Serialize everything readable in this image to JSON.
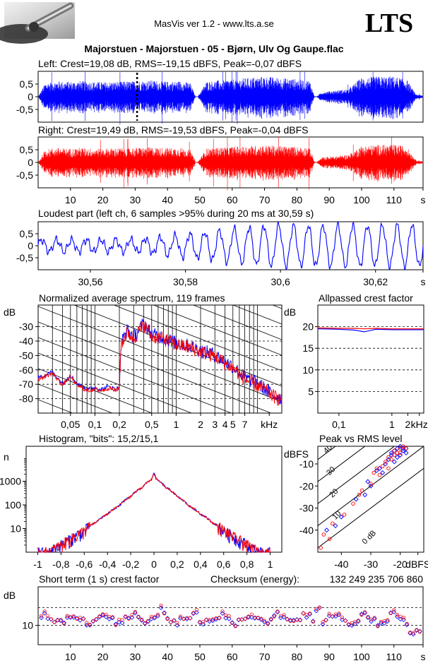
{
  "header": {
    "app_version": "MasVis ver 1.2 - www.lts.a.se",
    "logo_text": "LTS",
    "track_title": "Majorstuen - Majorstuen - 05 - Bjørn, Ulv Og Gaupe.flac"
  },
  "colors": {
    "left": "#0000ff",
    "right": "#ff0000",
    "axis": "#000000"
  },
  "chart_data": [
    {
      "id": "left",
      "type": "area",
      "title": "Left: Crest=19,08 dB, RMS=-19,15 dBFS, Peak=-0,07 dBFS",
      "ylim": [
        -1,
        1
      ],
      "yticks": [
        "0,5",
        "0",
        "-0,5"
      ],
      "yticks_val": [
        0.5,
        0,
        -0.5
      ],
      "xlim": [
        0,
        119
      ],
      "marker_time": 30.59,
      "silences": [
        [
          48.5,
          49.5
        ],
        [
          85.5,
          86.5
        ]
      ],
      "envelope": {
        "time": [
          0,
          2,
          4,
          6,
          8,
          10,
          13,
          16,
          20,
          25,
          30,
          35,
          40,
          44,
          47,
          48.5,
          49.5,
          52,
          56,
          60,
          65,
          70,
          75,
          80,
          84,
          85.5,
          86.5,
          88,
          92,
          96,
          100,
          105,
          110,
          114,
          117,
          119
        ],
        "amp": [
          0.05,
          0.55,
          0.6,
          0.62,
          0.6,
          0.6,
          0.62,
          0.6,
          0.58,
          0.6,
          0.62,
          0.65,
          0.6,
          0.62,
          0.55,
          0.05,
          0.05,
          0.6,
          0.65,
          0.7,
          0.75,
          0.8,
          0.75,
          0.7,
          0.65,
          0.05,
          0.05,
          0.2,
          0.25,
          0.3,
          0.75,
          0.8,
          0.8,
          0.7,
          0.1,
          0.05
        ]
      }
    },
    {
      "id": "right",
      "type": "area",
      "title": "Right: Crest=19,49 dB, RMS=-19,53 dBFS, Peak=-0,04 dBFS",
      "ylim": [
        -1,
        1
      ],
      "yticks": [
        "0,5",
        "0",
        "-0,5"
      ],
      "yticks_val": [
        0.5,
        0,
        -0.5
      ],
      "xlim": [
        0,
        119
      ],
      "xticks": [
        "10",
        "20",
        "30",
        "40",
        "50",
        "60",
        "70",
        "80",
        "90",
        "100",
        "110",
        "s"
      ],
      "xticks_val": [
        10,
        20,
        30,
        40,
        50,
        60,
        70,
        80,
        90,
        100,
        110,
        119
      ],
      "silences": [
        [
          48.5,
          49.5
        ],
        [
          85.5,
          86.5
        ]
      ],
      "envelope": {
        "time": [
          0,
          2,
          4,
          6,
          8,
          10,
          13,
          16,
          20,
          25,
          30,
          35,
          40,
          44,
          47,
          48.5,
          49.5,
          52,
          56,
          60,
          65,
          70,
          75,
          80,
          84,
          85.5,
          86.5,
          88,
          92,
          96,
          100,
          105,
          110,
          114,
          117,
          119
        ],
        "amp": [
          0.05,
          0.5,
          0.55,
          0.58,
          0.55,
          0.55,
          0.58,
          0.55,
          0.55,
          0.57,
          0.58,
          0.6,
          0.57,
          0.58,
          0.5,
          0.05,
          0.05,
          0.55,
          0.6,
          0.62,
          0.65,
          0.68,
          0.65,
          0.62,
          0.6,
          0.05,
          0.05,
          0.2,
          0.25,
          0.3,
          0.65,
          0.7,
          0.7,
          0.65,
          0.1,
          0.05
        ]
      }
    },
    {
      "id": "loudest",
      "type": "line",
      "title": "Loudest part (left  ch, 6 samples >95% during 20 ms at 30,59 s)",
      "ylim": [
        -1,
        1
      ],
      "yticks": [
        "0,5",
        "0",
        "-0,5"
      ],
      "yticks_val": [
        0.5,
        0,
        -0.5
      ],
      "xlim": [
        30.549,
        30.63
      ],
      "xticks": [
        "30,56",
        "30,58",
        "30,6",
        "30,62",
        "s"
      ],
      "xticks_val": [
        30.56,
        30.58,
        30.6,
        30.62,
        30.63
      ]
    },
    {
      "id": "spectrum",
      "type": "line",
      "title": "Normalized average spectrum, 119 frames",
      "ylabel": "dB",
      "xlabel": "kHz",
      "ylim": [
        -90,
        -15
      ],
      "yticks": [
        "-30",
        "-40",
        "-50",
        "-60",
        "-70",
        "-80"
      ],
      "yticks_val": [
        -30,
        -40,
        -50,
        -60,
        -70,
        -80
      ],
      "xlim": [
        0.02,
        20
      ],
      "xticks": [
        "0,05",
        "0,1",
        "0,2",
        "0,5",
        "1",
        "2",
        "3",
        "4",
        "5",
        "7",
        "kHz"
      ],
      "xticks_val": [
        0.05,
        0.1,
        0.2,
        0.5,
        1,
        2,
        3,
        4,
        5,
        7,
        14
      ],
      "series": [
        {
          "freq": [
            0.02,
            0.03,
            0.04,
            0.05,
            0.06,
            0.08,
            0.1,
            0.12,
            0.15,
            0.18,
            0.2,
            0.21,
            0.25,
            0.3,
            0.4,
            0.5,
            0.7,
            1,
            1.5,
            2,
            3,
            4,
            5,
            7,
            10,
            15,
            20
          ],
          "level": [
            -66,
            -62,
            -70,
            -64,
            -70,
            -74,
            -73,
            -74,
            -72,
            -74,
            -72,
            -42,
            -33,
            -38,
            -28,
            -36,
            -38,
            -42,
            -44,
            -47,
            -50,
            -55,
            -58,
            -66,
            -70,
            -77,
            -81
          ]
        }
      ]
    },
    {
      "id": "allpass",
      "type": "line",
      "title": "Allpassed crest factor",
      "ylabel": "dB",
      "xlabel": "kHz",
      "ylim": [
        0,
        25
      ],
      "yticks": [
        "20",
        "15",
        "10",
        "5"
      ],
      "yticks_val": [
        20,
        15,
        10,
        5
      ],
      "xlim": [
        0.04,
        4
      ],
      "xticks": [
        "0,1",
        "1",
        "2",
        "kHz"
      ],
      "xticks_val": [
        0.1,
        1,
        2,
        3.3
      ],
      "series": [
        {
          "name": "",
          "freq": [
            0.04,
            0.1,
            0.2,
            0.3,
            0.5,
            1,
            2,
            4
          ],
          "crest": [
            19.5,
            19.4,
            19.2,
            18.8,
            19.4,
            19.3,
            19.3,
            19.3
          ]
        },
        {
          "name": "",
          "freq": [
            0.04,
            0.1,
            0.2,
            0.3,
            0.5,
            1,
            2,
            4
          ],
          "crest": [
            19.7,
            19.6,
            19.6,
            19.5,
            19.6,
            19.5,
            19.5,
            19.5
          ]
        }
      ]
    },
    {
      "id": "histogram",
      "type": "line",
      "title": "Histogram, \"bits\": 15,2/15,1",
      "ylabel": "n",
      "ylim": [
        1,
        30000
      ],
      "yticks": [
        "1000",
        "100",
        "10"
      ],
      "yticks_val": [
        1000,
        100,
        10
      ],
      "xlim": [
        -1.1,
        1.1
      ],
      "xticks": [
        "-1",
        "-0,8",
        "-0,6",
        "-0,4",
        "-0,2",
        "0",
        "0,2",
        "0,4",
        "0,6",
        "0,8",
        "1"
      ],
      "xticks_val": [
        -1,
        -0.8,
        -0.6,
        -0.4,
        -0.2,
        0,
        0.2,
        0.4,
        0.6,
        0.8,
        1
      ],
      "x": [
        -1,
        -0.9,
        -0.8,
        -0.7,
        -0.6,
        -0.5,
        -0.4,
        -0.3,
        -0.2,
        -0.1,
        -0.02,
        0,
        0.02,
        0.1,
        0.2,
        0.3,
        0.4,
        0.5,
        0.6,
        0.7,
        0.8,
        0.9,
        1
      ],
      "n": [
        1,
        1,
        2,
        4,
        8,
        18,
        40,
        90,
        220,
        550,
        1200,
        2200,
        1200,
        550,
        220,
        90,
        40,
        18,
        8,
        4,
        2,
        1,
        1
      ]
    },
    {
      "id": "peak_rms",
      "type": "scatter",
      "title": "Peak vs RMS level",
      "ylabel": "dBFS",
      "xlabel": "dBFS",
      "ylim": [
        -50,
        -2
      ],
      "yticks": [
        "-10",
        "-20",
        "-30",
        "-40"
      ],
      "yticks_val": [
        -10,
        -20,
        -30,
        -40
      ],
      "xlim": [
        -48,
        -12
      ],
      "xticks": [
        "-40",
        "-30",
        "-20",
        "dBFS"
      ],
      "xticks_val": [
        -40,
        -30,
        -20,
        -14
      ],
      "crest_lines": [
        "40",
        "30",
        "20",
        "10",
        "0 dB"
      ],
      "crest_lines_val": [
        40,
        30,
        20,
        10,
        0
      ],
      "points_left": [
        [
          -20,
          -2
        ],
        [
          -21,
          -3
        ],
        [
          -22,
          -4
        ],
        [
          -19,
          -3
        ],
        [
          -18,
          -5
        ],
        [
          -23,
          -6
        ],
        [
          -24,
          -8
        ],
        [
          -22,
          -9
        ],
        [
          -25,
          -10
        ],
        [
          -20,
          -6
        ],
        [
          -27,
          -12
        ],
        [
          -26,
          -14
        ],
        [
          -28,
          -13
        ],
        [
          -21,
          -7
        ],
        [
          -19,
          -4
        ],
        [
          -30,
          -20
        ],
        [
          -32,
          -24
        ],
        [
          -35,
          -26
        ],
        [
          -40,
          -34
        ],
        [
          -42,
          -38
        ],
        [
          -45,
          -40
        ],
        [
          -31,
          -18
        ],
        [
          -23,
          -5
        ],
        [
          -18,
          -3
        ]
      ],
      "points_right": [
        [
          -20,
          -3
        ],
        [
          -22,
          -4
        ],
        [
          -21,
          -5
        ],
        [
          -19,
          -2
        ],
        [
          -24,
          -7
        ],
        [
          -23,
          -8
        ],
        [
          -25,
          -9
        ],
        [
          -26,
          -11
        ],
        [
          -22,
          -6
        ],
        [
          -28,
          -12
        ],
        [
          -27,
          -15
        ],
        [
          -29,
          -14
        ],
        [
          -24,
          -12
        ],
        [
          -30,
          -19
        ],
        [
          -33,
          -22
        ],
        [
          -36,
          -28
        ],
        [
          -39,
          -33
        ],
        [
          -43,
          -37
        ],
        [
          -46,
          -42
        ],
        [
          -47,
          -48
        ],
        [
          -44,
          -44
        ],
        [
          -20,
          -5
        ],
        [
          -18,
          -3
        ],
        [
          -34,
          -24
        ]
      ]
    },
    {
      "id": "short_crest",
      "type": "scatter",
      "title": "Short term (1 s) crest factor",
      "checksum_label": "Checksum (energy):",
      "checksum_value": "132 249 235 706 860",
      "ylabel": "dB",
      "ylim": [
        4,
        22
      ],
      "yticks": [
        "10"
      ],
      "yticks_val": [
        10
      ],
      "dashed_lines": [
        10,
        15.5
      ],
      "xlim": [
        0,
        119
      ],
      "xticks": [
        "10",
        "20",
        "30",
        "40",
        "50",
        "60",
        "70",
        "80",
        "90",
        "100",
        "110",
        "s"
      ],
      "xticks_val": [
        10,
        20,
        30,
        40,
        50,
        60,
        70,
        80,
        90,
        100,
        110,
        119
      ]
    }
  ]
}
